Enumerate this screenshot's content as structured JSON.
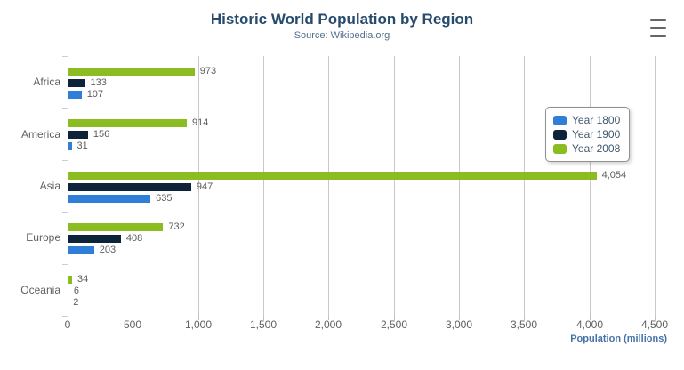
{
  "header": {
    "title": "Historic World Population by Region",
    "subtitle": "Source: Wikipedia.org"
  },
  "menu": {
    "icon": "hamburger-icon"
  },
  "chart_data": {
    "type": "bar",
    "orientation": "horizontal",
    "title": "Historic World Population by Region",
    "subtitle": "Source: Wikipedia.org",
    "categories": [
      "Africa",
      "America",
      "Asia",
      "Europe",
      "Oceania"
    ],
    "series": [
      {
        "name": "Year 1800",
        "color": "#2f7ed8",
        "values": [
          107,
          31,
          635,
          203,
          2
        ]
      },
      {
        "name": "Year 1900",
        "color": "#0d233a",
        "values": [
          133,
          156,
          947,
          408,
          6
        ]
      },
      {
        "name": "Year 2008",
        "color": "#8bbc21",
        "values": [
          973,
          914,
          4054,
          732,
          34
        ]
      }
    ],
    "bar_order_top_to_bottom": [
      "Year 2008",
      "Year 1900",
      "Year 1800"
    ],
    "xlabel": "Population (millions)",
    "ylabel": "",
    "xlim": [
      0,
      4500
    ],
    "tick_interval": 500,
    "x_tick_labels": [
      "0",
      "500",
      "1,000",
      "1,500",
      "2,000",
      "2,500",
      "3,000",
      "3,500",
      "4,000",
      "4,500"
    ],
    "grid": true,
    "data_labels_visible": true,
    "legend_position": "right-middle"
  },
  "legend": {
    "items": [
      {
        "label": "Year 1800",
        "color": "#2f7ed8"
      },
      {
        "label": "Year 1900",
        "color": "#0d233a"
      },
      {
        "label": "Year 2008",
        "color": "#8bbc21"
      }
    ]
  },
  "colors": {
    "title": "#274b6d",
    "subtitle": "#54708c",
    "gridline": "#c8c8c8",
    "axis_line": "#c0d0e0",
    "labels": "#606060",
    "axis_title": "#4572a7"
  }
}
